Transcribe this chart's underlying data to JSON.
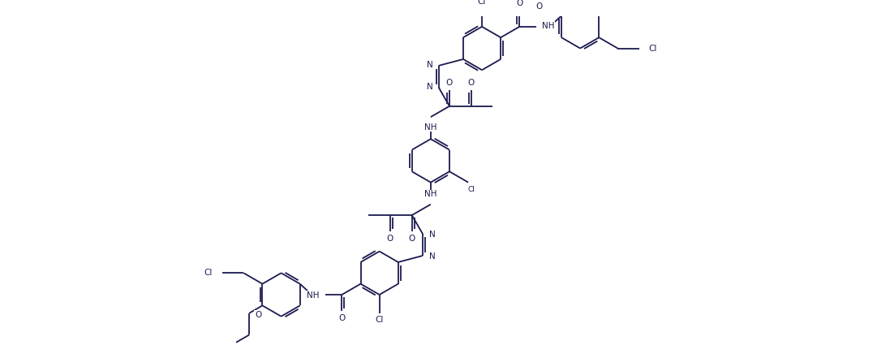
{
  "bg_color": "#ffffff",
  "line_color": "#1a1a50",
  "line_width": 1.3,
  "font_size": 7.5,
  "figsize": [
    10.97,
    4.25
  ],
  "dpi": 100,
  "xlim": [
    0,
    10.97
  ],
  "ylim": [
    0,
    4.25
  ]
}
